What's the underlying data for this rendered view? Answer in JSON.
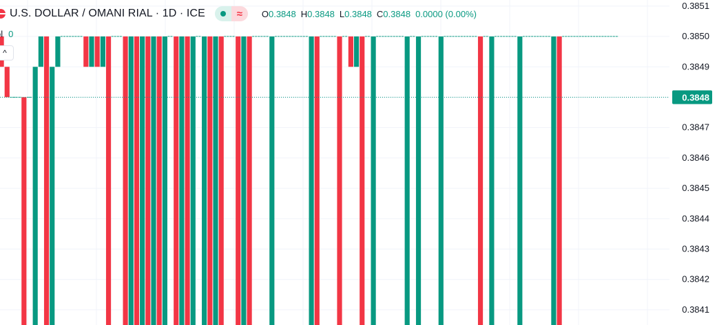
{
  "header": {
    "symbol_title": "U.S. DOLLAR / OMANI RIAL · 1D · ICE",
    "status_wave_glyph": "≈",
    "ohlc": {
      "open_key": "O",
      "open": "0.3848",
      "high_key": "H",
      "high": "0.3848",
      "low_key": "L",
      "low": "0.3848",
      "close_key": "C",
      "close": "0.3848",
      "change": "0.0000 (0.00%)"
    }
  },
  "volume": {
    "label": "ol",
    "value": "0"
  },
  "collapse_glyph": "^",
  "colors": {
    "up": "#089981",
    "down": "#f23645",
    "grid": "#f0f3fa",
    "axis_text": "#131722",
    "price_line": "#089981"
  },
  "chart_data": {
    "type": "candlestick",
    "ylim": [
      0.38405,
      0.38512
    ],
    "y_ticks": [
      "0.3851",
      "0.3850",
      "0.3849",
      "0.3848",
      "0.3847",
      "0.3846",
      "0.3845",
      "0.3844",
      "0.3843",
      "0.3842",
      "0.3841"
    ],
    "current_price": "0.3848",
    "series": [
      {
        "dir": "down",
        "o": 0.385,
        "c": 0.3849
      },
      {
        "dir": "down",
        "o": 0.3849,
        "c": 0.3848
      },
      {
        "dir": "flat",
        "o": 0.3848,
        "c": 0.3848
      },
      {
        "dir": "flat",
        "o": 0.3848,
        "c": 0.3848
      },
      {
        "dir": "down",
        "o": 0.3848,
        "c": 0.384
      },
      {
        "dir": "flat",
        "o": 0.3848,
        "c": 0.3848
      },
      {
        "dir": "up",
        "o": 0.384,
        "c": 0.3849
      },
      {
        "dir": "up",
        "o": 0.3849,
        "c": 0.385
      },
      {
        "dir": "down",
        "o": 0.385,
        "c": 0.384
      },
      {
        "dir": "up",
        "o": 0.384,
        "c": 0.3849
      },
      {
        "dir": "up",
        "o": 0.3849,
        "c": 0.385
      },
      {
        "dir": "flat",
        "o": 0.385,
        "c": 0.385
      },
      {
        "dir": "flat",
        "o": 0.385,
        "c": 0.385
      },
      {
        "dir": "flat",
        "o": 0.385,
        "c": 0.385
      },
      {
        "dir": "flat",
        "o": 0.385,
        "c": 0.385
      },
      {
        "dir": "down",
        "o": 0.385,
        "c": 0.3849
      },
      {
        "dir": "up",
        "o": 0.3849,
        "c": 0.385
      },
      {
        "dir": "down",
        "o": 0.385,
        "c": 0.3849
      },
      {
        "dir": "up",
        "o": 0.3849,
        "c": 0.385
      },
      {
        "dir": "down",
        "o": 0.385,
        "c": 0.384
      },
      {
        "dir": "flat",
        "o": 0.385,
        "c": 0.385
      },
      {
        "dir": "flat",
        "o": 0.385,
        "c": 0.385
      },
      {
        "dir": "down",
        "o": 0.385,
        "c": 0.384
      },
      {
        "dir": "up",
        "o": 0.384,
        "c": 0.385
      },
      {
        "dir": "down",
        "o": 0.385,
        "c": 0.384
      },
      {
        "dir": "up",
        "o": 0.384,
        "c": 0.385
      },
      {
        "dir": "down",
        "o": 0.385,
        "c": 0.384
      },
      {
        "dir": "up",
        "o": 0.384,
        "c": 0.385
      },
      {
        "dir": "down",
        "o": 0.385,
        "c": 0.384
      },
      {
        "dir": "up",
        "o": 0.384,
        "c": 0.385
      },
      {
        "dir": "flat",
        "o": 0.385,
        "c": 0.385
      },
      {
        "dir": "down",
        "o": 0.385,
        "c": 0.384
      },
      {
        "dir": "up",
        "o": 0.384,
        "c": 0.385
      },
      {
        "dir": "down",
        "o": 0.385,
        "c": 0.384
      },
      {
        "dir": "up",
        "o": 0.384,
        "c": 0.385
      },
      {
        "dir": "flat",
        "o": 0.385,
        "c": 0.385
      },
      {
        "dir": "up",
        "o": 0.384,
        "c": 0.385
      },
      {
        "dir": "down",
        "o": 0.385,
        "c": 0.384
      },
      {
        "dir": "up",
        "o": 0.384,
        "c": 0.385
      },
      {
        "dir": "down",
        "o": 0.385,
        "c": 0.384
      },
      {
        "dir": "flat",
        "o": 0.385,
        "c": 0.385
      },
      {
        "dir": "flat",
        "o": 0.385,
        "c": 0.385
      },
      {
        "dir": "down",
        "o": 0.385,
        "c": 0.384
      },
      {
        "dir": "up",
        "o": 0.384,
        "c": 0.385
      },
      {
        "dir": "down",
        "o": 0.385,
        "c": 0.384
      },
      {
        "dir": "flat",
        "o": 0.385,
        "c": 0.385
      },
      {
        "dir": "flat",
        "o": 0.385,
        "c": 0.385
      },
      {
        "dir": "flat",
        "o": 0.385,
        "c": 0.385
      },
      {
        "dir": "up",
        "o": 0.384,
        "c": 0.385
      },
      {
        "dir": "flat",
        "o": 0.385,
        "c": 0.385
      },
      {
        "dir": "flat",
        "o": 0.385,
        "c": 0.385
      },
      {
        "dir": "flat",
        "o": 0.385,
        "c": 0.385
      },
      {
        "dir": "flat",
        "o": 0.385,
        "c": 0.385
      },
      {
        "dir": "flat",
        "o": 0.385,
        "c": 0.385
      },
      {
        "dir": "flat",
        "o": 0.385,
        "c": 0.385
      },
      {
        "dir": "up",
        "o": 0.384,
        "c": 0.385
      },
      {
        "dir": "down",
        "o": 0.385,
        "c": 0.384
      },
      {
        "dir": "flat",
        "o": 0.385,
        "c": 0.385
      },
      {
        "dir": "flat",
        "o": 0.385,
        "c": 0.385
      },
      {
        "dir": "flat",
        "o": 0.385,
        "c": 0.385
      },
      {
        "dir": "down",
        "o": 0.385,
        "c": 0.384
      },
      {
        "dir": "flat",
        "o": 0.385,
        "c": 0.385
      },
      {
        "dir": "down",
        "o": 0.385,
        "c": 0.3849
      },
      {
        "dir": "up",
        "o": 0.3849,
        "c": 0.385
      },
      {
        "dir": "down",
        "o": 0.385,
        "c": 0.384
      },
      {
        "dir": "flat",
        "o": 0.385,
        "c": 0.385
      },
      {
        "dir": "up",
        "o": 0.384,
        "c": 0.385
      },
      {
        "dir": "flat",
        "o": 0.385,
        "c": 0.385
      },
      {
        "dir": "flat",
        "o": 0.385,
        "c": 0.385
      },
      {
        "dir": "flat",
        "o": 0.385,
        "c": 0.385
      },
      {
        "dir": "flat",
        "o": 0.385,
        "c": 0.385
      },
      {
        "dir": "flat",
        "o": 0.385,
        "c": 0.385
      },
      {
        "dir": "up",
        "o": 0.384,
        "c": 0.385
      },
      {
        "dir": "flat",
        "o": 0.385,
        "c": 0.385
      },
      {
        "dir": "up",
        "o": 0.384,
        "c": 0.385
      },
      {
        "dir": "flat",
        "o": 0.385,
        "c": 0.385
      },
      {
        "dir": "flat",
        "o": 0.385,
        "c": 0.385
      },
      {
        "dir": "flat",
        "o": 0.385,
        "c": 0.385
      },
      {
        "dir": "up",
        "o": 0.384,
        "c": 0.385
      },
      {
        "dir": "flat",
        "o": 0.385,
        "c": 0.385
      },
      {
        "dir": "flat",
        "o": 0.385,
        "c": 0.385
      },
      {
        "dir": "flat",
        "o": 0.385,
        "c": 0.385
      },
      {
        "dir": "flat",
        "o": 0.385,
        "c": 0.385
      },
      {
        "dir": "flat",
        "o": 0.385,
        "c": 0.385
      },
      {
        "dir": "flat",
        "o": 0.385,
        "c": 0.385
      },
      {
        "dir": "down",
        "o": 0.385,
        "c": 0.384
      },
      {
        "dir": "flat",
        "o": 0.385,
        "c": 0.385
      },
      {
        "dir": "up",
        "o": 0.384,
        "c": 0.385
      },
      {
        "dir": "flat",
        "o": 0.385,
        "c": 0.385
      },
      {
        "dir": "flat",
        "o": 0.385,
        "c": 0.385
      },
      {
        "dir": "flat",
        "o": 0.385,
        "c": 0.385
      },
      {
        "dir": "flat",
        "o": 0.385,
        "c": 0.385
      },
      {
        "dir": "up",
        "o": 0.384,
        "c": 0.385
      },
      {
        "dir": "flat",
        "o": 0.385,
        "c": 0.385
      },
      {
        "dir": "flat",
        "o": 0.385,
        "c": 0.385
      },
      {
        "dir": "flat",
        "o": 0.385,
        "c": 0.385
      },
      {
        "dir": "flat",
        "o": 0.385,
        "c": 0.385
      },
      {
        "dir": "flat",
        "o": 0.385,
        "c": 0.385
      },
      {
        "dir": "up",
        "o": 0.384,
        "c": 0.385
      },
      {
        "dir": "down",
        "o": 0.385,
        "c": 0.384
      },
      {
        "dir": "flat",
        "o": 0.385,
        "c": 0.385
      },
      {
        "dir": "flat",
        "o": 0.385,
        "c": 0.385
      },
      {
        "dir": "flat",
        "o": 0.385,
        "c": 0.385
      },
      {
        "dir": "flat",
        "o": 0.385,
        "c": 0.385
      },
      {
        "dir": "flat",
        "o": 0.385,
        "c": 0.385
      },
      {
        "dir": "flat",
        "o": 0.385,
        "c": 0.385
      },
      {
        "dir": "flat",
        "o": 0.385,
        "c": 0.385
      },
      {
        "dir": "flat",
        "o": 0.385,
        "c": 0.385
      },
      {
        "dir": "flat",
        "o": 0.385,
        "c": 0.385
      },
      {
        "dir": "flat",
        "o": 0.385,
        "c": 0.385
      }
    ]
  }
}
